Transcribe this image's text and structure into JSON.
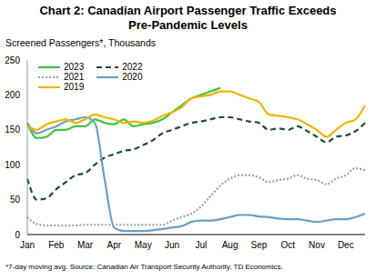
{
  "chart_data": {
    "type": "line",
    "title": "Chart 2: Canadian Airport Passenger Traffic Exceeds Pre-Pandemic Levels",
    "y_label": "Screened Passengers*, Thousands",
    "footnote": "*7-day moving avg. Source: Canadian Air Transport Security Authority, TD Economics.",
    "categories": [
      "Jan",
      null,
      null,
      "Feb",
      null,
      null,
      "Mar",
      null,
      null,
      "Apr",
      null,
      null,
      "May",
      null,
      null,
      "Jun",
      null,
      null,
      "Jul",
      null,
      null,
      "Aug",
      null,
      null,
      "Sep",
      null,
      null,
      "Oct",
      null,
      null,
      "Nov",
      null,
      null,
      "Dec",
      null,
      null
    ],
    "series": [
      {
        "name": "2023",
        "color": "#3cc43c",
        "line_style": "solid",
        "values": [
          160,
          138,
          140,
          150,
          150,
          155,
          155,
          165,
          160,
          158,
          165,
          155,
          158,
          160,
          165,
          175,
          185,
          195,
          200,
          205,
          210,
          null,
          null,
          null,
          null,
          null,
          null,
          null,
          null,
          null,
          null,
          null,
          null,
          null,
          null,
          null
        ]
      },
      {
        "name": "2022",
        "color": "#1a4d2e",
        "line_style": "dashed",
        "values": [
          80,
          50,
          52,
          65,
          75,
          85,
          88,
          100,
          110,
          115,
          120,
          122,
          128,
          135,
          145,
          150,
          155,
          160,
          162,
          165,
          168,
          168,
          165,
          162,
          160,
          150,
          152,
          150,
          155,
          148,
          140,
          132,
          140,
          142,
          148,
          160
        ]
      },
      {
        "name": "2021",
        "color": "#a0a0a0",
        "line_style": "dotted",
        "values": [
          25,
          15,
          13,
          13,
          13,
          13,
          14,
          14,
          14,
          14,
          14,
          14,
          14,
          14,
          14,
          20,
          25,
          30,
          40,
          55,
          70,
          80,
          85,
          85,
          82,
          75,
          78,
          80,
          85,
          80,
          78,
          72,
          80,
          85,
          95,
          92
        ]
      },
      {
        "name": "2020",
        "color": "#6a9fc4",
        "line_style": "solid",
        "values": [
          160,
          145,
          150,
          155,
          162,
          165,
          168,
          160,
          80,
          10,
          5,
          5,
          5,
          6,
          8,
          10,
          12,
          18,
          20,
          20,
          22,
          25,
          28,
          28,
          26,
          25,
          23,
          22,
          22,
          20,
          18,
          20,
          22,
          22,
          25,
          30
        ]
      },
      {
        "name": "2019",
        "color": "#f0b400",
        "line_style": "solid",
        "values": [
          155,
          150,
          158,
          162,
          165,
          160,
          165,
          172,
          168,
          165,
          160,
          162,
          160,
          163,
          170,
          175,
          182,
          195,
          198,
          200,
          205,
          205,
          200,
          195,
          190,
          172,
          170,
          168,
          165,
          158,
          150,
          140,
          150,
          160,
          165,
          185
        ]
      }
    ],
    "ylim": [
      0,
      250
    ],
    "yticks": [
      0,
      50,
      100,
      150,
      200,
      250
    ],
    "grid": false,
    "legend": "upper left"
  }
}
